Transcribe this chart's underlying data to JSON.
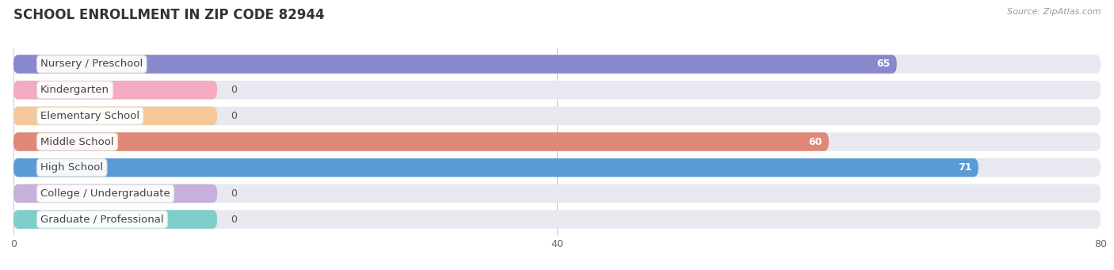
{
  "title": "SCHOOL ENROLLMENT IN ZIP CODE 82944",
  "source": "Source: ZipAtlas.com",
  "categories": [
    "Nursery / Preschool",
    "Kindergarten",
    "Elementary School",
    "Middle School",
    "High School",
    "College / Undergraduate",
    "Graduate / Professional"
  ],
  "values": [
    65,
    0,
    0,
    60,
    71,
    0,
    0
  ],
  "bar_colors": [
    "#8888cc",
    "#f4aac0",
    "#f5c89a",
    "#e08878",
    "#5b9bd5",
    "#c8b0dc",
    "#7ececa"
  ],
  "bar_bg_color": "#e8e8f0",
  "row_bg_color": "#f0f0f5",
  "xlim": [
    0,
    80
  ],
  "xticks": [
    0,
    40,
    80
  ],
  "title_fontsize": 12,
  "label_fontsize": 9.5,
  "value_fontsize": 9,
  "background_color": "#ffffff",
  "zero_stub_value": 15
}
